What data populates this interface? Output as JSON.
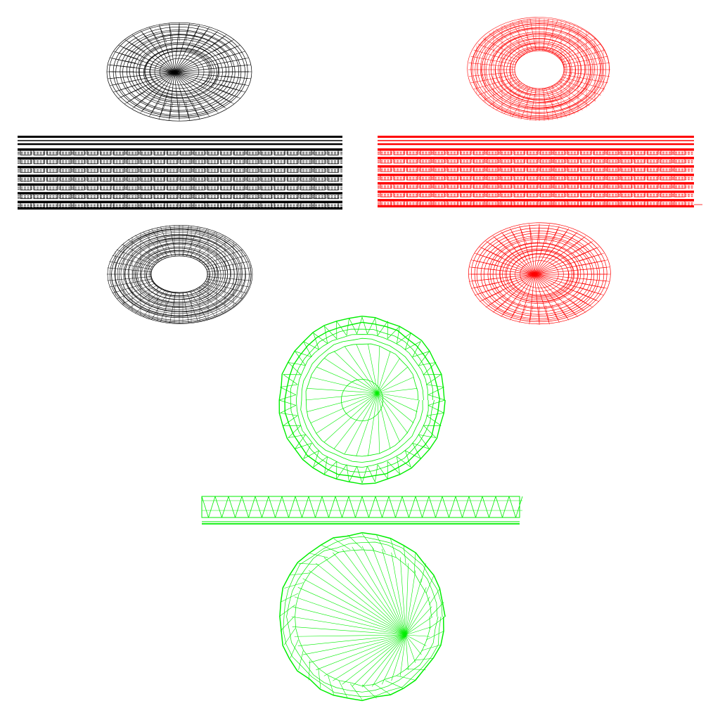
{
  "colors": {
    "background": "#ffffff",
    "black_set": "#000000",
    "red_set": "#ff0000",
    "green_set": "#00ee00"
  },
  "views": [
    {
      "id": "black-top-view",
      "set": "black",
      "kind": "disc-top",
      "color": "#000000"
    },
    {
      "id": "black-side-view",
      "set": "black",
      "kind": "side-strip",
      "color": "#000000"
    },
    {
      "id": "black-bottom-view",
      "set": "black",
      "kind": "ring-bottom",
      "color": "#000000"
    },
    {
      "id": "red-top-view",
      "set": "red",
      "kind": "ring-top",
      "color": "#ff0000"
    },
    {
      "id": "red-side-view",
      "set": "red",
      "kind": "side-strip",
      "color": "#ff0000"
    },
    {
      "id": "red-bottom-view",
      "set": "red",
      "kind": "disc-bottom",
      "color": "#ff0000"
    },
    {
      "id": "green-top-view",
      "set": "green",
      "kind": "ring-triangulated",
      "color": "#00ee00"
    },
    {
      "id": "green-side-view",
      "set": "green",
      "kind": "side-strip-triangulated",
      "color": "#00ee00"
    },
    {
      "id": "green-bottom-view",
      "set": "green",
      "kind": "disc-triangulated",
      "color": "#00ee00"
    }
  ]
}
